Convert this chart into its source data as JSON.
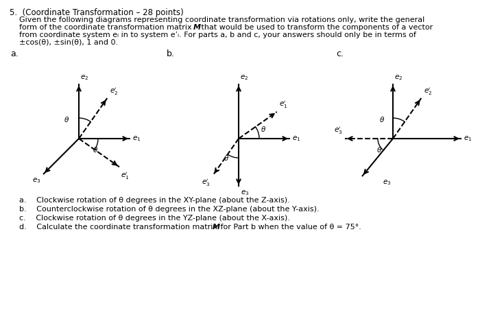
{
  "bg_color": "#ffffff",
  "title": "5.  (Coordinate Transformation – 28 points)",
  "body_lines": [
    "Given the following diagrams representing coordinate transformation via rotations only, write the general",
    "form of the coordinate transformation matrix ",
    " that would be used to transform the components of a vector",
    "from coordinate system eᵢ in to system e’ᵢ. For parts a, b and c, your answers should only be in terms of",
    "±cos(θ), ±sin(θ), 1 and 0."
  ],
  "fn_lines": [
    [
      "a.  Clockwise rotation of θ degrees in the XY-plane (about the Z-axis)."
    ],
    [
      "b.  Counterclockwise rotation of θ degrees in the XZ-plane (about the Y-axis)."
    ],
    [
      "c.  Clockwise rotation of θ degrees in the YZ-plane (about the X-axis)."
    ],
    [
      "d.  Calculate the coordinate transformation matrix ",
      "M",
      " for Part b when the value of θ = 75°."
    ]
  ]
}
